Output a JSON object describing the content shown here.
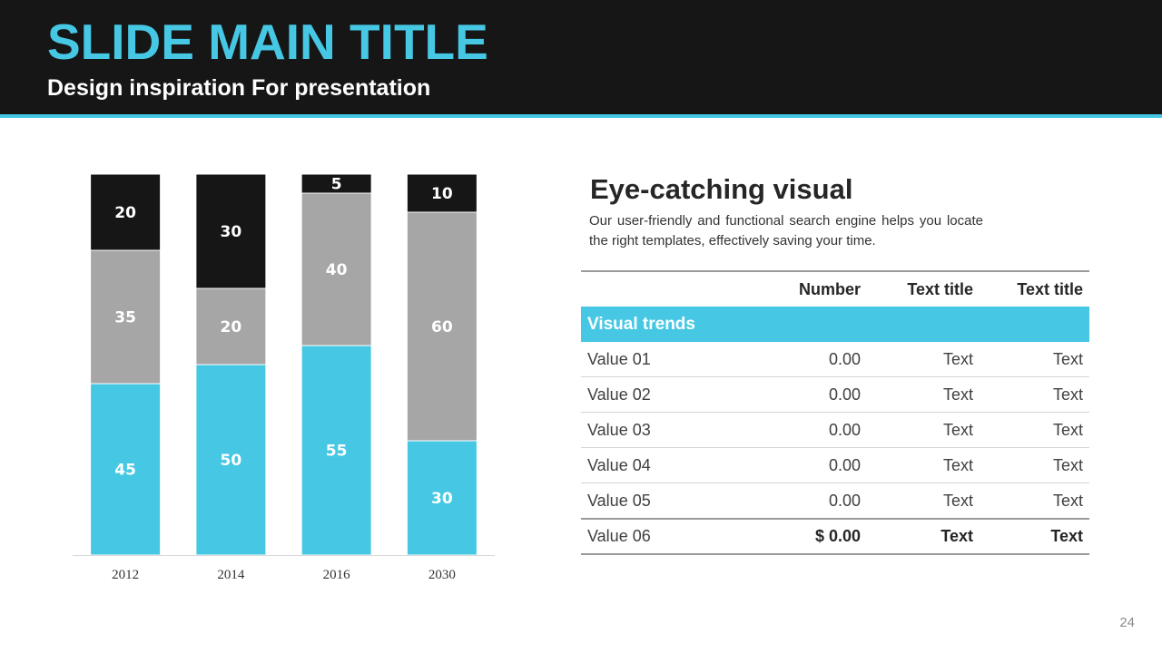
{
  "slide": {
    "title": "SLIDE MAIN TITLE",
    "subtitle": "Design inspiration For presentation",
    "page_number": "24"
  },
  "colors": {
    "accent": "#46c8e4",
    "dark": "#161616",
    "gray": "#a6a6a6"
  },
  "chart_data": {
    "type": "bar",
    "stacked": true,
    "categories": [
      "2012",
      "2014",
      "2016",
      "2030"
    ],
    "series": [
      {
        "values": [
          45,
          50,
          55,
          30
        ],
        "color": "#46c8e4"
      },
      {
        "values": [
          35,
          20,
          40,
          60
        ],
        "color": "#a6a6a6"
      },
      {
        "values": [
          20,
          30,
          5,
          10
        ],
        "color": "#161616"
      }
    ],
    "ylim": [
      0,
      100
    ],
    "grid": false,
    "legend": "none",
    "data_labels": true
  },
  "info": {
    "heading": "Eye-catching visual",
    "text": "Our user-friendly and functional search engine helps you locate the right templates, effectively saving your time."
  },
  "table": {
    "headers": [
      "",
      "Number",
      "Text title",
      "Text title"
    ],
    "band_label": "Visual trends",
    "rows": [
      [
        "Value 01",
        "0.00",
        "Text",
        "Text"
      ],
      [
        "Value 02",
        "0.00",
        "Text",
        "Text"
      ],
      [
        "Value 03",
        "0.00",
        "Text",
        "Text"
      ],
      [
        "Value 04",
        "0.00",
        "Text",
        "Text"
      ],
      [
        "Value 05",
        "0.00",
        "Text",
        "Text"
      ]
    ],
    "total": [
      "Value 06",
      "$ 0.00",
      "Text",
      "Text"
    ]
  }
}
